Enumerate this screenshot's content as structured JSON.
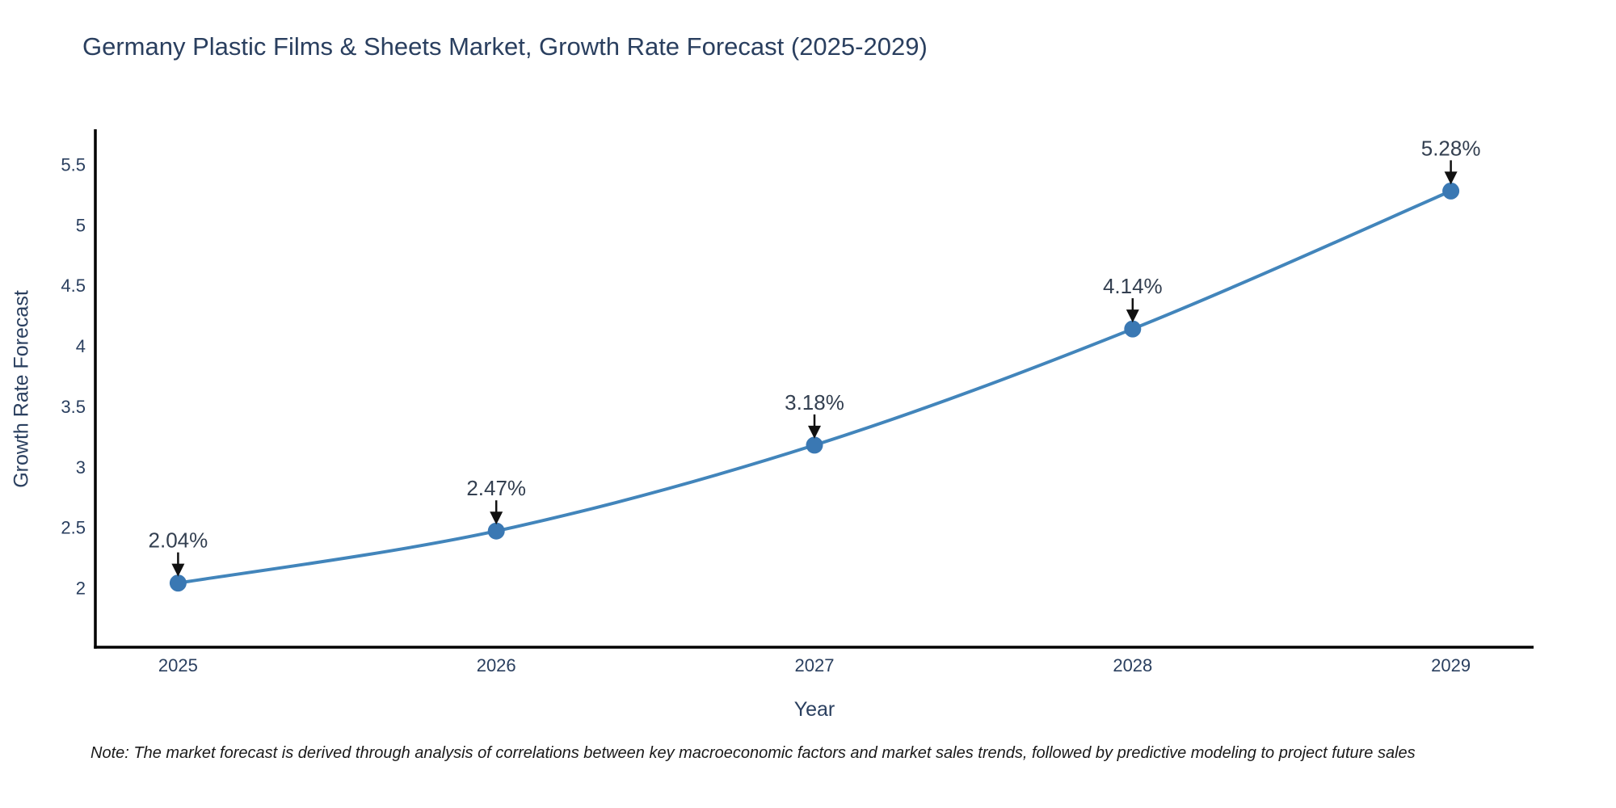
{
  "chart": {
    "title": "Germany Plastic Films & Sheets Market, Growth Rate Forecast (2025-2029)",
    "xlabel": "Year",
    "ylabel": "Growth Rate Forecast",
    "note": "Note: The market forecast is derived through analysis of correlations between key macroeconomic factors and market sales trends, followed by predictive modeling to project future sales",
    "colors": {
      "line": "#4285bb",
      "marker": "#3a78b3",
      "axis": "#000000",
      "arrow": "#111111",
      "label_text": "#2a3f5f",
      "annotation_text": "#333f50",
      "note_text": "#1a1a1a",
      "background": "#ffffff"
    }
  },
  "chart_data": {
    "type": "line",
    "line_style": "spline",
    "markers": true,
    "grid": false,
    "legend": null,
    "title": "Germany Plastic Films & Sheets Market, Growth Rate Forecast (2025-2029)",
    "xlabel": "Year",
    "ylabel": "Growth Rate Forecast",
    "categories": [
      2025,
      2026,
      2027,
      2028,
      2029
    ],
    "x": [
      2025,
      2026,
      2027,
      2028,
      2029
    ],
    "values": [
      2.04,
      2.47,
      3.18,
      4.14,
      5.28
    ],
    "point_labels": [
      "2.04%",
      "2.47%",
      "3.18%",
      "4.14%",
      "5.28%"
    ],
    "xticks": [
      2025,
      2026,
      2027,
      2028,
      2029
    ],
    "yticks": [
      2,
      2.5,
      3,
      3.5,
      4,
      4.5,
      5,
      5.5
    ],
    "xlim": [
      2024.74,
      2029.26
    ],
    "ylim": [
      1.51,
      5.79
    ]
  }
}
